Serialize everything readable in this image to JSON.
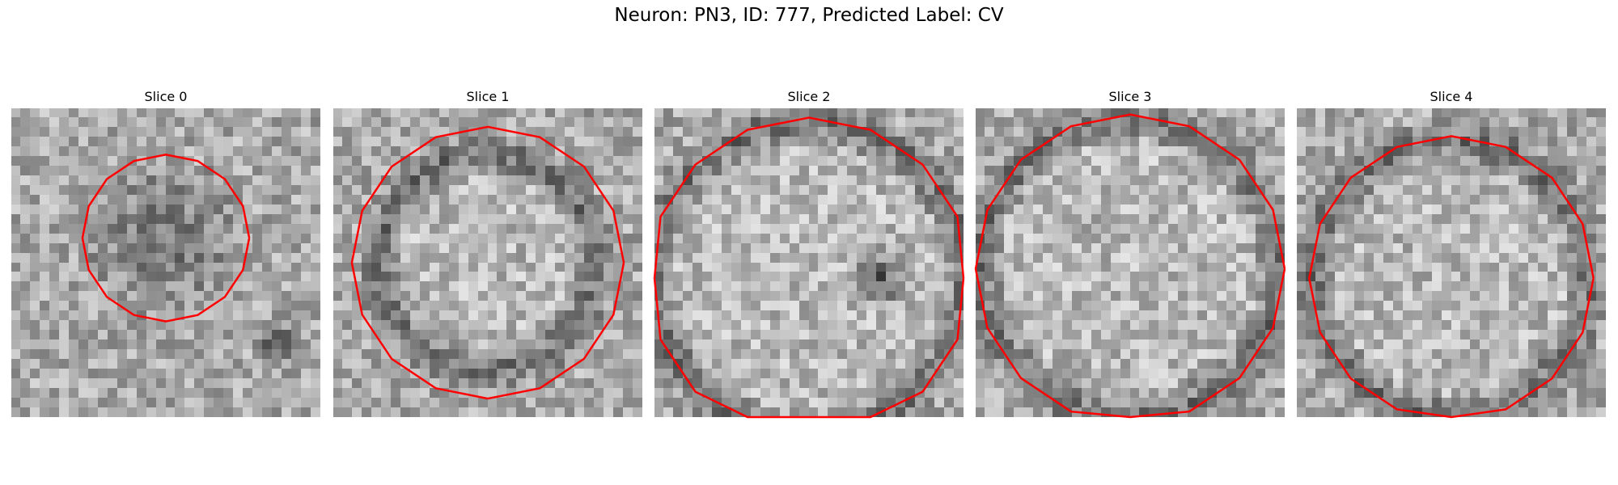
{
  "figure": {
    "title": "Neuron: PN3, ID: 777, Predicted Label: CV"
  },
  "contour_color": "#ff0000",
  "colormap": "gray",
  "slices": [
    {
      "title": "Slice 0",
      "ring": "dark-blob",
      "contour_radius": 0.27,
      "contour_center": [
        0.5,
        0.42
      ]
    },
    {
      "title": "Slice 1",
      "ring": "dark-ring-inside",
      "contour_radius": 0.44,
      "contour_center": [
        0.5,
        0.5
      ]
    },
    {
      "title": "Slice 2",
      "ring": "dark-ring-dark-right",
      "contour_radius": 0.52,
      "contour_center": [
        0.5,
        0.55
      ]
    },
    {
      "title": "Slice 3",
      "ring": "dark-ring-outer",
      "contour_radius": 0.5,
      "contour_center": [
        0.5,
        0.52
      ]
    },
    {
      "title": "Slice 4",
      "ring": "dark-ring-outer",
      "contour_radius": 0.46,
      "contour_center": [
        0.5,
        0.55
      ]
    }
  ]
}
